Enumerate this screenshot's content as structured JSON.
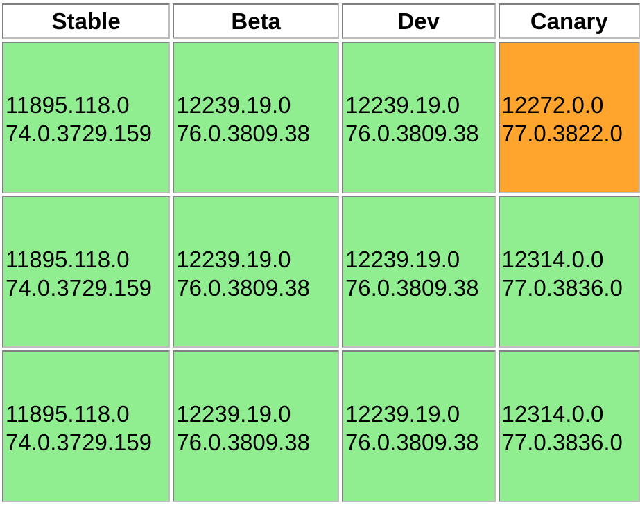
{
  "headers": [
    "Stable",
    "Beta",
    "Dev",
    "Canary"
  ],
  "colors": {
    "ok": "#90ee90",
    "warn": "#ffa52e"
  },
  "rows": [
    [
      {
        "platform": "11895.118.0",
        "browser": "74.0.3729.159",
        "status": "ok"
      },
      {
        "platform": "12239.19.0",
        "browser": "76.0.3809.38",
        "status": "ok"
      },
      {
        "platform": "12239.19.0",
        "browser": "76.0.3809.38",
        "status": "ok"
      },
      {
        "platform": "12272.0.0",
        "browser": "77.0.3822.0",
        "status": "warn"
      }
    ],
    [
      {
        "platform": "11895.118.0",
        "browser": "74.0.3729.159",
        "status": "ok"
      },
      {
        "platform": "12239.19.0",
        "browser": "76.0.3809.38",
        "status": "ok"
      },
      {
        "platform": "12239.19.0",
        "browser": "76.0.3809.38",
        "status": "ok"
      },
      {
        "platform": "12314.0.0",
        "browser": "77.0.3836.0",
        "status": "ok"
      }
    ],
    [
      {
        "platform": "11895.118.0",
        "browser": "74.0.3729.159",
        "status": "ok"
      },
      {
        "platform": "12239.19.0",
        "browser": "76.0.3809.38",
        "status": "ok"
      },
      {
        "platform": "12239.19.0",
        "browser": "76.0.3809.38",
        "status": "ok"
      },
      {
        "platform": "12314.0.0",
        "browser": "77.0.3836.0",
        "status": "ok"
      }
    ]
  ]
}
